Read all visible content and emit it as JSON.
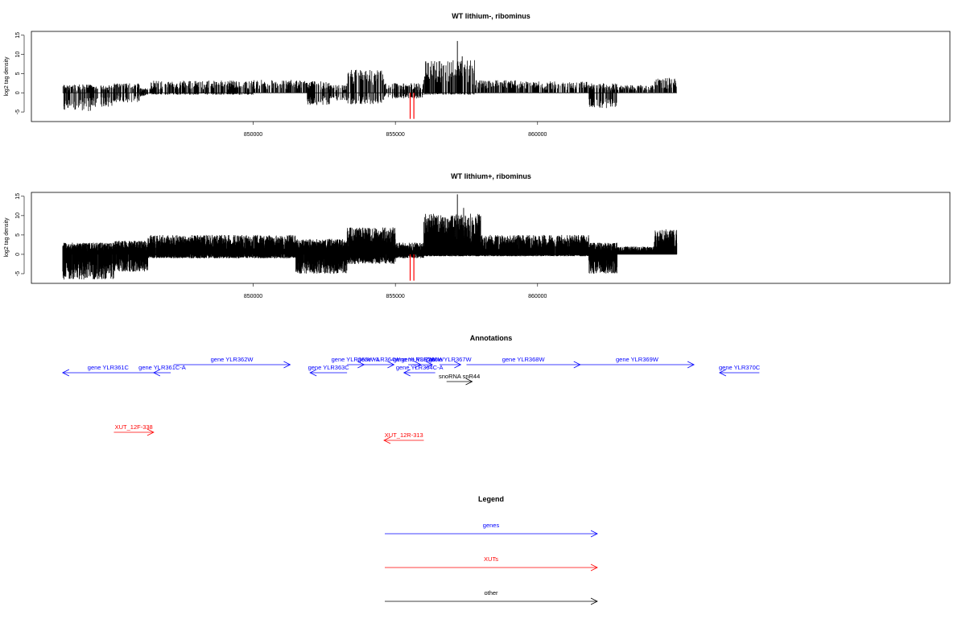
{
  "chart_data": [
    {
      "type": "bar",
      "title": "WT lithium-, ribominus",
      "ylabel": "log2 tag density",
      "xlabel": "",
      "xlim": [
        842200,
        874500
      ],
      "ylim": [
        -7.5,
        16
      ],
      "yticks": [
        -5,
        0,
        5,
        10,
        15
      ],
      "xticks": [
        850000,
        855000,
        860000
      ],
      "grid": false,
      "special_lines_red": [
        855520,
        855650
      ],
      "density": "sparse",
      "segments": [
        {
          "from": 843300,
          "to": 844300,
          "max": 2.2,
          "min": -4.8
        },
        {
          "from": 844300,
          "to": 845100,
          "max": 2.0,
          "min": -3.8
        },
        {
          "from": 845100,
          "to": 846000,
          "max": 2.5,
          "min": -2.5
        },
        {
          "from": 846000,
          "to": 846300,
          "max": 1.2,
          "min": -1.0
        },
        {
          "from": 846300,
          "to": 850000,
          "max": 3.2,
          "min": -0.5
        },
        {
          "from": 850000,
          "to": 851900,
          "max": 3.4,
          "min": -0.3
        },
        {
          "from": 851900,
          "to": 852700,
          "max": 3.0,
          "min": -3.2
        },
        {
          "from": 852700,
          "to": 853300,
          "max": 2.0,
          "min": -2.0
        },
        {
          "from": 853300,
          "to": 854600,
          "max": 6.0,
          "min": -3.0
        },
        {
          "from": 854600,
          "to": 856000,
          "max": 2.5,
          "min": -1.5
        },
        {
          "from": 856000,
          "to": 857800,
          "max": 8.5,
          "min": -0.5
        },
        {
          "from": 857800,
          "to": 859400,
          "max": 3.3,
          "min": -0.3
        },
        {
          "from": 859400,
          "to": 861800,
          "max": 3.0,
          "min": -0.3
        },
        {
          "from": 861800,
          "to": 862800,
          "max": 2.5,
          "min": -4.0
        },
        {
          "from": 862800,
          "to": 864100,
          "max": 2.0,
          "min": -0.2
        },
        {
          "from": 864100,
          "to": 864900,
          "max": 4.0,
          "min": -0.1
        }
      ],
      "peaks": [
        {
          "x": 857180,
          "y": 13.5
        },
        {
          "x": 857350,
          "y": 9.5
        }
      ]
    },
    {
      "type": "bar",
      "title": "WT lithium+, ribominus",
      "ylabel": "log2 tag density",
      "xlabel": "",
      "xlim": [
        842200,
        874500
      ],
      "ylim": [
        -7.5,
        16
      ],
      "yticks": [
        -5,
        0,
        5,
        10,
        15
      ],
      "xticks": [
        850000,
        855000,
        860000
      ],
      "grid": false,
      "special_lines_red": [
        855520,
        855650
      ],
      "density": "dense",
      "segments": [
        {
          "from": 843300,
          "to": 845100,
          "max": 3.0,
          "min": -6.5
        },
        {
          "from": 845100,
          "to": 846300,
          "max": 3.5,
          "min": -4.5
        },
        {
          "from": 846300,
          "to": 851500,
          "max": 5.0,
          "min": -1.0
        },
        {
          "from": 851500,
          "to": 853300,
          "max": 4.0,
          "min": -5.0
        },
        {
          "from": 853300,
          "to": 855000,
          "max": 7.0,
          "min": -2.5
        },
        {
          "from": 855000,
          "to": 856000,
          "max": 3.0,
          "min": -1.0
        },
        {
          "from": 856000,
          "to": 858000,
          "max": 10.5,
          "min": -0.5
        },
        {
          "from": 858000,
          "to": 861800,
          "max": 5.0,
          "min": -0.5
        },
        {
          "from": 861800,
          "to": 862800,
          "max": 3.0,
          "min": -5.0
        },
        {
          "from": 862800,
          "to": 864100,
          "max": 2.0,
          "min": -0.2
        },
        {
          "from": 864100,
          "to": 864900,
          "max": 6.5,
          "min": -0.1
        }
      ],
      "peaks": [
        {
          "x": 857180,
          "y": 15.5
        },
        {
          "x": 857400,
          "y": 12.0
        }
      ]
    }
  ],
  "annotations": {
    "title": "Annotations",
    "features": [
      {
        "label": "gene YLR361C",
        "start": 843300,
        "end": 846500,
        "strand": "-",
        "color": "#0000ff"
      },
      {
        "label": "gene YLR361C-A",
        "start": 846500,
        "end": 847100,
        "strand": "-",
        "color": "#0000ff"
      },
      {
        "label": "gene YLR362W",
        "start": 847200,
        "end": 851300,
        "strand": "+",
        "color": "#0000ff"
      },
      {
        "label": "gene YLR363C",
        "start": 852000,
        "end": 853300,
        "strand": "-",
        "color": "#0000ff"
      },
      {
        "label": "gene YLR363W-A",
        "start": 853300,
        "end": 853900,
        "strand": "+",
        "color": "#0000ff"
      },
      {
        "label": "gene YLR364W",
        "start": 853900,
        "end": 854950,
        "strand": "+",
        "color": "#0000ff"
      },
      {
        "label": "gene YLR365W",
        "start": 855450,
        "end": 855900,
        "strand": "+",
        "color": "#0000ff"
      },
      {
        "label": "gene YLR366W",
        "start": 855600,
        "end": 856300,
        "strand": "+",
        "color": "#0000ff"
      },
      {
        "label": "gene YLR364C-A",
        "start": 855300,
        "end": 856400,
        "strand": "-",
        "color": "#0000ff"
      },
      {
        "label": "gene YLR367W",
        "start": 856550,
        "end": 857300,
        "strand": "+",
        "color": "#0000ff"
      },
      {
        "label": "gene YLR368W",
        "start": 857500,
        "end": 861500,
        "strand": "+",
        "color": "#0000ff"
      },
      {
        "label": "gene YLR369W",
        "start": 861500,
        "end": 865500,
        "strand": "+",
        "color": "#0000ff"
      },
      {
        "label": "gene YLR370C",
        "start": 866400,
        "end": 867800,
        "strand": "-",
        "color": "#0000ff"
      },
      {
        "label": "snoRNA snR44",
        "start": 856800,
        "end": 857700,
        "strand": "+",
        "color": "#000000"
      },
      {
        "label": "XUT_12F-338",
        "start": 845100,
        "end": 846500,
        "strand": "+",
        "color": "#ff0000"
      },
      {
        "label": "XUT_12R-313",
        "start": 854600,
        "end": 856000,
        "strand": "-",
        "color": "#ff0000"
      }
    ]
  },
  "legend": {
    "title": "Legend",
    "items": [
      {
        "label": "genes",
        "color": "#0000ff"
      },
      {
        "label": "XUTs",
        "color": "#ff0000"
      },
      {
        "label": "other",
        "color": "#000000"
      }
    ]
  }
}
